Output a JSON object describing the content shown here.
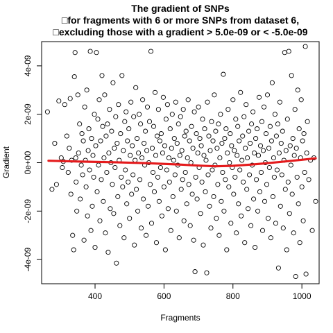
{
  "chart_data": {
    "type": "scatter",
    "title": [
      "The gradient of SNPs",
      "□for fragments with 6 or more SNPs from dataset 6,",
      "□excluding those with a gradient > 5.0e-09 or < -5.0e-09"
    ],
    "xlabel": "Fragments",
    "ylabel": "Gradient",
    "xlim": [
      245,
      1050
    ],
    "ylim": [
      -5e-09,
      5e-09
    ],
    "x_ticks": [
      400,
      600,
      800,
      1000
    ],
    "x_tick_labels": [
      "400",
      "600",
      "800",
      "1000"
    ],
    "y_ticks": [
      -4e-09,
      -2e-09,
      0,
      2e-09,
      4e-09
    ],
    "y_tick_labels": [
      "-4e-09",
      "-2e-09",
      "0e+00",
      "2e-09",
      "4e-09"
    ],
    "grid": false,
    "legend": "none",
    "point_color": "#000000",
    "trend_color": "#e41a1c",
    "points": [
      [
        262,
        2.1e-09
      ],
      [
        275,
        -1.1e-09
      ],
      [
        283,
        8e-10
      ],
      [
        288,
        -9e-10
      ],
      [
        295,
        2.55e-09
      ],
      [
        302,
        2e-10
      ],
      [
        305,
        -2e-10
      ],
      [
        308,
        5e-11
      ],
      [
        312,
        2.4e-09
      ],
      [
        318,
        1.1e-09
      ],
      [
        322,
        -4e-10
      ],
      [
        325,
        6e-10
      ],
      [
        328,
        2.65e-09
      ],
      [
        330,
        -1.3e-09
      ],
      [
        332,
        1e-10
      ],
      [
        335,
        -3e-09
      ],
      [
        338,
        -3.6e-09
      ],
      [
        340,
        3.55e-09
      ],
      [
        342,
        4.55e-09
      ],
      [
        344,
        2e-10
      ],
      [
        345,
        -8e-10
      ],
      [
        347,
        -2e-09
      ],
      [
        350,
        2.8e-09
      ],
      [
        352,
        4e-10
      ],
      [
        355,
        1.6e-09
      ],
      [
        357,
        -1.5e-09
      ],
      [
        360,
        -1e-10
      ],
      [
        362,
        1.2e-09
      ],
      [
        364,
        -5e-10
      ],
      [
        366,
        9e-10
      ],
      [
        368,
        -3.2e-09
      ],
      [
        370,
        2.3e-09
      ],
      [
        372,
        1e-10
      ],
      [
        374,
        -1e-09
      ],
      [
        376,
        3e-09
      ],
      [
        378,
        -2.2e-09
      ],
      [
        380,
        5e-10
      ],
      [
        382,
        1.4e-09
      ],
      [
        384,
        -3e-10
      ],
      [
        386,
        4.6e-09
      ],
      [
        388,
        -2.8e-09
      ],
      [
        390,
        1e-09
      ],
      [
        392,
        -1.8e-09
      ],
      [
        394,
        3e-10
      ],
      [
        396,
        -6e-10
      ],
      [
        398,
        2e-09
      ],
      [
        400,
        -3.5e-09
      ],
      [
        402,
        7e-10
      ],
      [
        404,
        4.55e-09
      ],
      [
        406,
        -1.2e-09
      ],
      [
        408,
        1.8e-09
      ],
      [
        410,
        -1e-10
      ],
      [
        412,
        2.6e-09
      ],
      [
        414,
        -2.4e-09
      ],
      [
        416,
        9e-10
      ],
      [
        418,
        -7e-10
      ],
      [
        420,
        3.6e-09
      ],
      [
        422,
        1.5e-09
      ],
      [
        424,
        -1.6e-09
      ],
      [
        426,
        2e-10
      ],
      [
        428,
        2.8e-09
      ],
      [
        430,
        -2.9e-09
      ],
      [
        432,
        1.1e-09
      ],
      [
        434,
        -4e-10
      ],
      [
        436,
        1.6e-09
      ],
      [
        438,
        -3.7e-09
      ],
      [
        440,
        4e-10
      ],
      [
        442,
        2.2e-09
      ],
      [
        444,
        -1.9e-09
      ],
      [
        446,
        0.0
      ],
      [
        448,
        1.3e-09
      ],
      [
        450,
        -9e-10
      ],
      [
        452,
        3.3e-09
      ],
      [
        454,
        -2.1e-09
      ],
      [
        456,
        6e-10
      ],
      [
        458,
        -2e-10
      ],
      [
        460,
        1.9e-09
      ],
      [
        462,
        -4.15e-09
      ],
      [
        464,
        8e-10
      ],
      [
        466,
        -1.4e-09
      ],
      [
        468,
        2.4e-09
      ],
      [
        470,
        1e-10
      ],
      [
        472,
        -2.6e-09
      ],
      [
        474,
        1.2e-09
      ],
      [
        476,
        -6e-10
      ],
      [
        478,
        3.6e-09
      ],
      [
        480,
        -1e-09
      ],
      [
        482,
        5e-10
      ],
      [
        484,
        -3.1e-09
      ],
      [
        486,
        1.7e-09
      ],
      [
        488,
        -3e-10
      ],
      [
        490,
        2.1e-09
      ],
      [
        492,
        -1.7e-09
      ],
      [
        494,
        9e-10
      ],
      [
        496,
        -8e-10
      ],
      [
        498,
        1.4e-09
      ],
      [
        500,
        -2.3e-09
      ],
      [
        502,
        3e-10
      ],
      [
        504,
        2.5e-09
      ],
      [
        506,
        -1.3e-09
      ],
      [
        508,
        7e-10
      ],
      [
        510,
        -5e-10
      ],
      [
        512,
        1.9e-09
      ],
      [
        514,
        -3.4e-09
      ],
      [
        516,
        1e-10
      ],
      [
        518,
        3.1e-09
      ],
      [
        520,
        -1.1e-09
      ],
      [
        522,
        1e-09
      ],
      [
        524,
        -2e-09
      ],
      [
        526,
        4e-10
      ],
      [
        528,
        2e-09
      ],
      [
        530,
        -7e-10
      ],
      [
        532,
        1.6e-09
      ],
      [
        534,
        -2.7e-09
      ],
      [
        536,
        2e-10
      ],
      [
        538,
        2.6e-09
      ],
      [
        540,
        -1.5e-09
      ],
      [
        542,
        8e-10
      ],
      [
        544,
        -1e-10
      ],
      [
        546,
        1.3e-09
      ],
      [
        548,
        -3e-09
      ],
      [
        550,
        5e-10
      ],
      [
        552,
        2.3e-09
      ],
      [
        554,
        -1.8e-09
      ],
      [
        556,
        0.0
      ],
      [
        558,
        1.7e-09
      ],
      [
        560,
        -9e-10
      ],
      [
        562,
        4.6e-09
      ],
      [
        564,
        -2.5e-09
      ],
      [
        566,
        6e-10
      ],
      [
        568,
        -4e-10
      ],
      [
        570,
        1.5e-09
      ],
      [
        572,
        -1.2e-09
      ],
      [
        574,
        2.9e-09
      ],
      [
        576,
        3e-10
      ],
      [
        578,
        -3.3e-09
      ],
      [
        580,
        1.1e-09
      ],
      [
        582,
        -6e-10
      ],
      [
        584,
        2.2e-09
      ],
      [
        586,
        -1.6e-09
      ],
      [
        588,
        9e-10
      ],
      [
        590,
        -2e-10
      ],
      [
        592,
        1.2e-09
      ],
      [
        594,
        -2.2e-09
      ],
      [
        596,
        4e-10
      ],
      [
        598,
        2.7e-09
      ],
      [
        600,
        -1e-09
      ],
      [
        602,
        7e-10
      ],
      [
        604,
        -3.6e-09
      ],
      [
        606,
        1.8e-09
      ],
      [
        608,
        -3e-10
      ],
      [
        610,
        2.4e-09
      ],
      [
        612,
        -1.9e-09
      ],
      [
        614,
        2e-10
      ],
      [
        616,
        -8e-10
      ],
      [
        618,
        1.4e-09
      ],
      [
        620,
        -2.8e-09
      ],
      [
        622,
        6e-10
      ],
      [
        624,
        2e-09
      ],
      [
        626,
        -1.4e-09
      ],
      [
        628,
        1e-10
      ],
      [
        630,
        1e-09
      ],
      [
        632,
        -5e-10
      ],
      [
        634,
        2.5e-09
      ],
      [
        636,
        -2e-09
      ],
      [
        638,
        8e-10
      ],
      [
        640,
        -1e-10
      ],
      [
        642,
        1.6e-09
      ],
      [
        644,
        -3.1e-09
      ],
      [
        646,
        3e-10
      ],
      [
        648,
        1.9e-09
      ],
      [
        650,
        -1.1e-09
      ],
      [
        652,
        5e-10
      ],
      [
        654,
        -7e-10
      ],
      [
        656,
        2.2e-09
      ],
      [
        658,
        -2.4e-09
      ],
      [
        660,
        1.1e-09
      ],
      [
        662,
        -4e-10
      ],
      [
        664,
        1.3e-09
      ],
      [
        666,
        -1.7e-09
      ],
      [
        668,
        2e-10
      ],
      [
        670,
        2.6e-09
      ],
      [
        672,
        -9e-10
      ],
      [
        674,
        9e-10
      ],
      [
        676,
        -2.6e-09
      ],
      [
        678,
        0.0
      ],
      [
        680,
        1.5e-09
      ],
      [
        682,
        -1.3e-09
      ],
      [
        684,
        6e-10
      ],
      [
        686,
        -3.2e-09
      ],
      [
        688,
        2.1e-09
      ],
      [
        690,
        -4.5e-09
      ],
      [
        692,
        -6e-10
      ],
      [
        694,
        1.2e-09
      ],
      [
        696,
        -1.5e-09
      ],
      [
        698,
        4e-10
      ],
      [
        700,
        2.3e-09
      ],
      [
        702,
        -2e-10
      ],
      [
        704,
        1e-09
      ],
      [
        706,
        -2.1e-09
      ],
      [
        708,
        7e-10
      ],
      [
        710,
        -8e-10
      ],
      [
        712,
        1.8e-09
      ],
      [
        714,
        -3.4e-09
      ],
      [
        716,
        3e-10
      ],
      [
        718,
        1.4e-09
      ],
      [
        720,
        -1.2e-09
      ],
      [
        722,
        1e-10
      ],
      [
        724,
        -4.55e-09
      ],
      [
        726,
        2.5e-09
      ],
      [
        728,
        -5e-10
      ],
      [
        730,
        1.1e-09
      ],
      [
        732,
        -1.8e-09
      ],
      [
        734,
        5e-10
      ],
      [
        736,
        -2.7e-09
      ],
      [
        738,
        1.7e-09
      ],
      [
        740,
        -3e-10
      ],
      [
        742,
        9e-10
      ],
      [
        744,
        -1.4e-09
      ],
      [
        746,
        2.8e-09
      ],
      [
        748,
        -1e-10
      ],
      [
        750,
        1.3e-09
      ],
      [
        752,
        -2.3e-09
      ],
      [
        754,
        6e-10
      ],
      [
        756,
        -9e-10
      ],
      [
        758,
        1.6e-09
      ],
      [
        760,
        -3e-09
      ],
      [
        762,
        2e-10
      ],
      [
        764,
        2e-09
      ],
      [
        766,
        -1.6e-09
      ],
      [
        768,
        8e-10
      ],
      [
        770,
        -4e-10
      ],
      [
        772,
        3.65e-09
      ],
      [
        774,
        -2e-09
      ],
      [
        776,
        1e-09
      ],
      [
        778,
        -7e-10
      ],
      [
        780,
        1.4e-09
      ],
      [
        782,
        -3.6e-09
      ],
      [
        784,
        4e-10
      ],
      [
        786,
        2.2e-09
      ],
      [
        788,
        -1e-09
      ],
      [
        790,
        0.0
      ],
      [
        792,
        1.2e-09
      ],
      [
        794,
        -2.5e-09
      ],
      [
        796,
        7e-10
      ],
      [
        798,
        -2e-10
      ],
      [
        800,
        2.6e-09
      ],
      [
        802,
        -1.3e-09
      ],
      [
        804,
        5e-10
      ],
      [
        806,
        -6e-10
      ],
      [
        808,
        1.8e-09
      ],
      [
        810,
        -2.9e-09
      ],
      [
        812,
        3e-10
      ],
      [
        814,
        1.5e-09
      ],
      [
        816,
        -1.7e-09
      ],
      [
        818,
        9e-10
      ],
      [
        820,
        -3e-10
      ],
      [
        822,
        2.9e-09
      ],
      [
        824,
        -2.2e-09
      ],
      [
        826,
        1e-10
      ],
      [
        828,
        1.1e-09
      ],
      [
        830,
        -8e-10
      ],
      [
        832,
        1.9e-09
      ],
      [
        834,
        -3.3e-09
      ],
      [
        836,
        6e-10
      ],
      [
        838,
        2.4e-09
      ],
      [
        840,
        -1.1e-09
      ],
      [
        842,
        2e-10
      ],
      [
        844,
        -1.9e-09
      ],
      [
        846,
        1.3e-09
      ],
      [
        848,
        -5e-10
      ],
      [
        850,
        8e-10
      ],
      [
        852,
        -2.6e-09
      ],
      [
        854,
        1.6e-09
      ],
      [
        856,
        -1e-10
      ],
      [
        858,
        2.1e-09
      ],
      [
        860,
        -1.5e-09
      ],
      [
        862,
        4e-10
      ],
      [
        864,
        -3.5e-09
      ],
      [
        866,
        1e-09
      ],
      [
        868,
        -7e-10
      ],
      [
        870,
        1.4e-09
      ],
      [
        872,
        -2e-09
      ],
      [
        874,
        3e-10
      ],
      [
        876,
        2.7e-09
      ],
      [
        878,
        -1.2e-09
      ],
      [
        880,
        7e-10
      ],
      [
        882,
        -4e-10
      ],
      [
        884,
        1.7e-09
      ],
      [
        886,
        -2.8e-09
      ],
      [
        888,
        5e-10
      ],
      [
        890,
        2.3e-09
      ],
      [
        892,
        -1.6e-09
      ],
      [
        894,
        0.0
      ],
      [
        896,
        1.2e-09
      ],
      [
        898,
        -9e-10
      ],
      [
        900,
        2.8e-09
      ],
      [
        902,
        -2.3e-09
      ],
      [
        904,
        6e-10
      ],
      [
        906,
        -2e-10
      ],
      [
        908,
        1.5e-09
      ],
      [
        910,
        -3.1e-09
      ],
      [
        912,
        9e-10
      ],
      [
        914,
        3.3e-09
      ],
      [
        916,
        -1.4e-09
      ],
      [
        918,
        2e-10
      ],
      [
        920,
        -6e-10
      ],
      [
        922,
        2e-09
      ],
      [
        924,
        -2.5e-09
      ],
      [
        926,
        1.1e-09
      ],
      [
        928,
        -3e-10
      ],
      [
        930,
        1.6e-09
      ],
      [
        932,
        -4.35e-09
      ],
      [
        934,
        4e-10
      ],
      [
        936,
        2.5e-09
      ],
      [
        938,
        -1.8e-09
      ],
      [
        940,
        8e-10
      ],
      [
        942,
        -5e-10
      ],
      [
        944,
        1.3e-09
      ],
      [
        946,
        -2.7e-09
      ],
      [
        948,
        1e-10
      ],
      [
        950,
        4.55e-09
      ],
      [
        952,
        -1.1e-09
      ],
      [
        954,
        5e-10
      ],
      [
        956,
        -3.6e-09
      ],
      [
        958,
        1.8e-09
      ],
      [
        960,
        -8e-10
      ],
      [
        962,
        4.6e-09
      ],
      [
        964,
        -2.1e-09
      ],
      [
        966,
        7e-10
      ],
      [
        968,
        -1e-10
      ],
      [
        970,
        3.6e-09
      ],
      [
        972,
        -1.3e-09
      ],
      [
        974,
        1e-09
      ],
      [
        976,
        -2.9e-09
      ],
      [
        978,
        3e-10
      ],
      [
        980,
        2.2e-09
      ],
      [
        982,
        -4.7e-09
      ],
      [
        984,
        6e-10
      ],
      [
        986,
        -6e-10
      ],
      [
        988,
        3e-09
      ],
      [
        990,
        -1.7e-09
      ],
      [
        992,
        1.4e-09
      ],
      [
        994,
        -3.3e-09
      ],
      [
        996,
        2e-10
      ],
      [
        998,
        2.6e-09
      ],
      [
        1000,
        -1e-09
      ],
      [
        1002,
        9e-10
      ],
      [
        1004,
        -2.4e-09
      ],
      [
        1006,
        1.2e-09
      ],
      [
        1008,
        -4e-10
      ],
      [
        1010,
        4.8e-09
      ],
      [
        1012,
        -4.6e-09
      ],
      [
        1014,
        4e-10
      ],
      [
        1016,
        1.7e-09
      ],
      [
        1020,
        -7e-10
      ],
      [
        1025,
        1e-10
      ],
      [
        1030,
        -2.8e-09
      ],
      [
        1035,
        2e-10
      ],
      [
        1040,
        -1.6e-09
      ]
    ],
    "trend": {
      "x": [
        265,
        350,
        450,
        550,
        650,
        700,
        750,
        800,
        850,
        900,
        950,
        1000,
        1040
      ],
      "y": [
        8e-11,
        5e-11,
        2e-11,
        -2e-11,
        -8e-11,
        -1.2e-10,
        -1.5e-10,
        -1.3e-10,
        -8e-11,
        -2e-11,
        5e-11,
        1.2e-10,
        1.8e-10
      ]
    }
  }
}
